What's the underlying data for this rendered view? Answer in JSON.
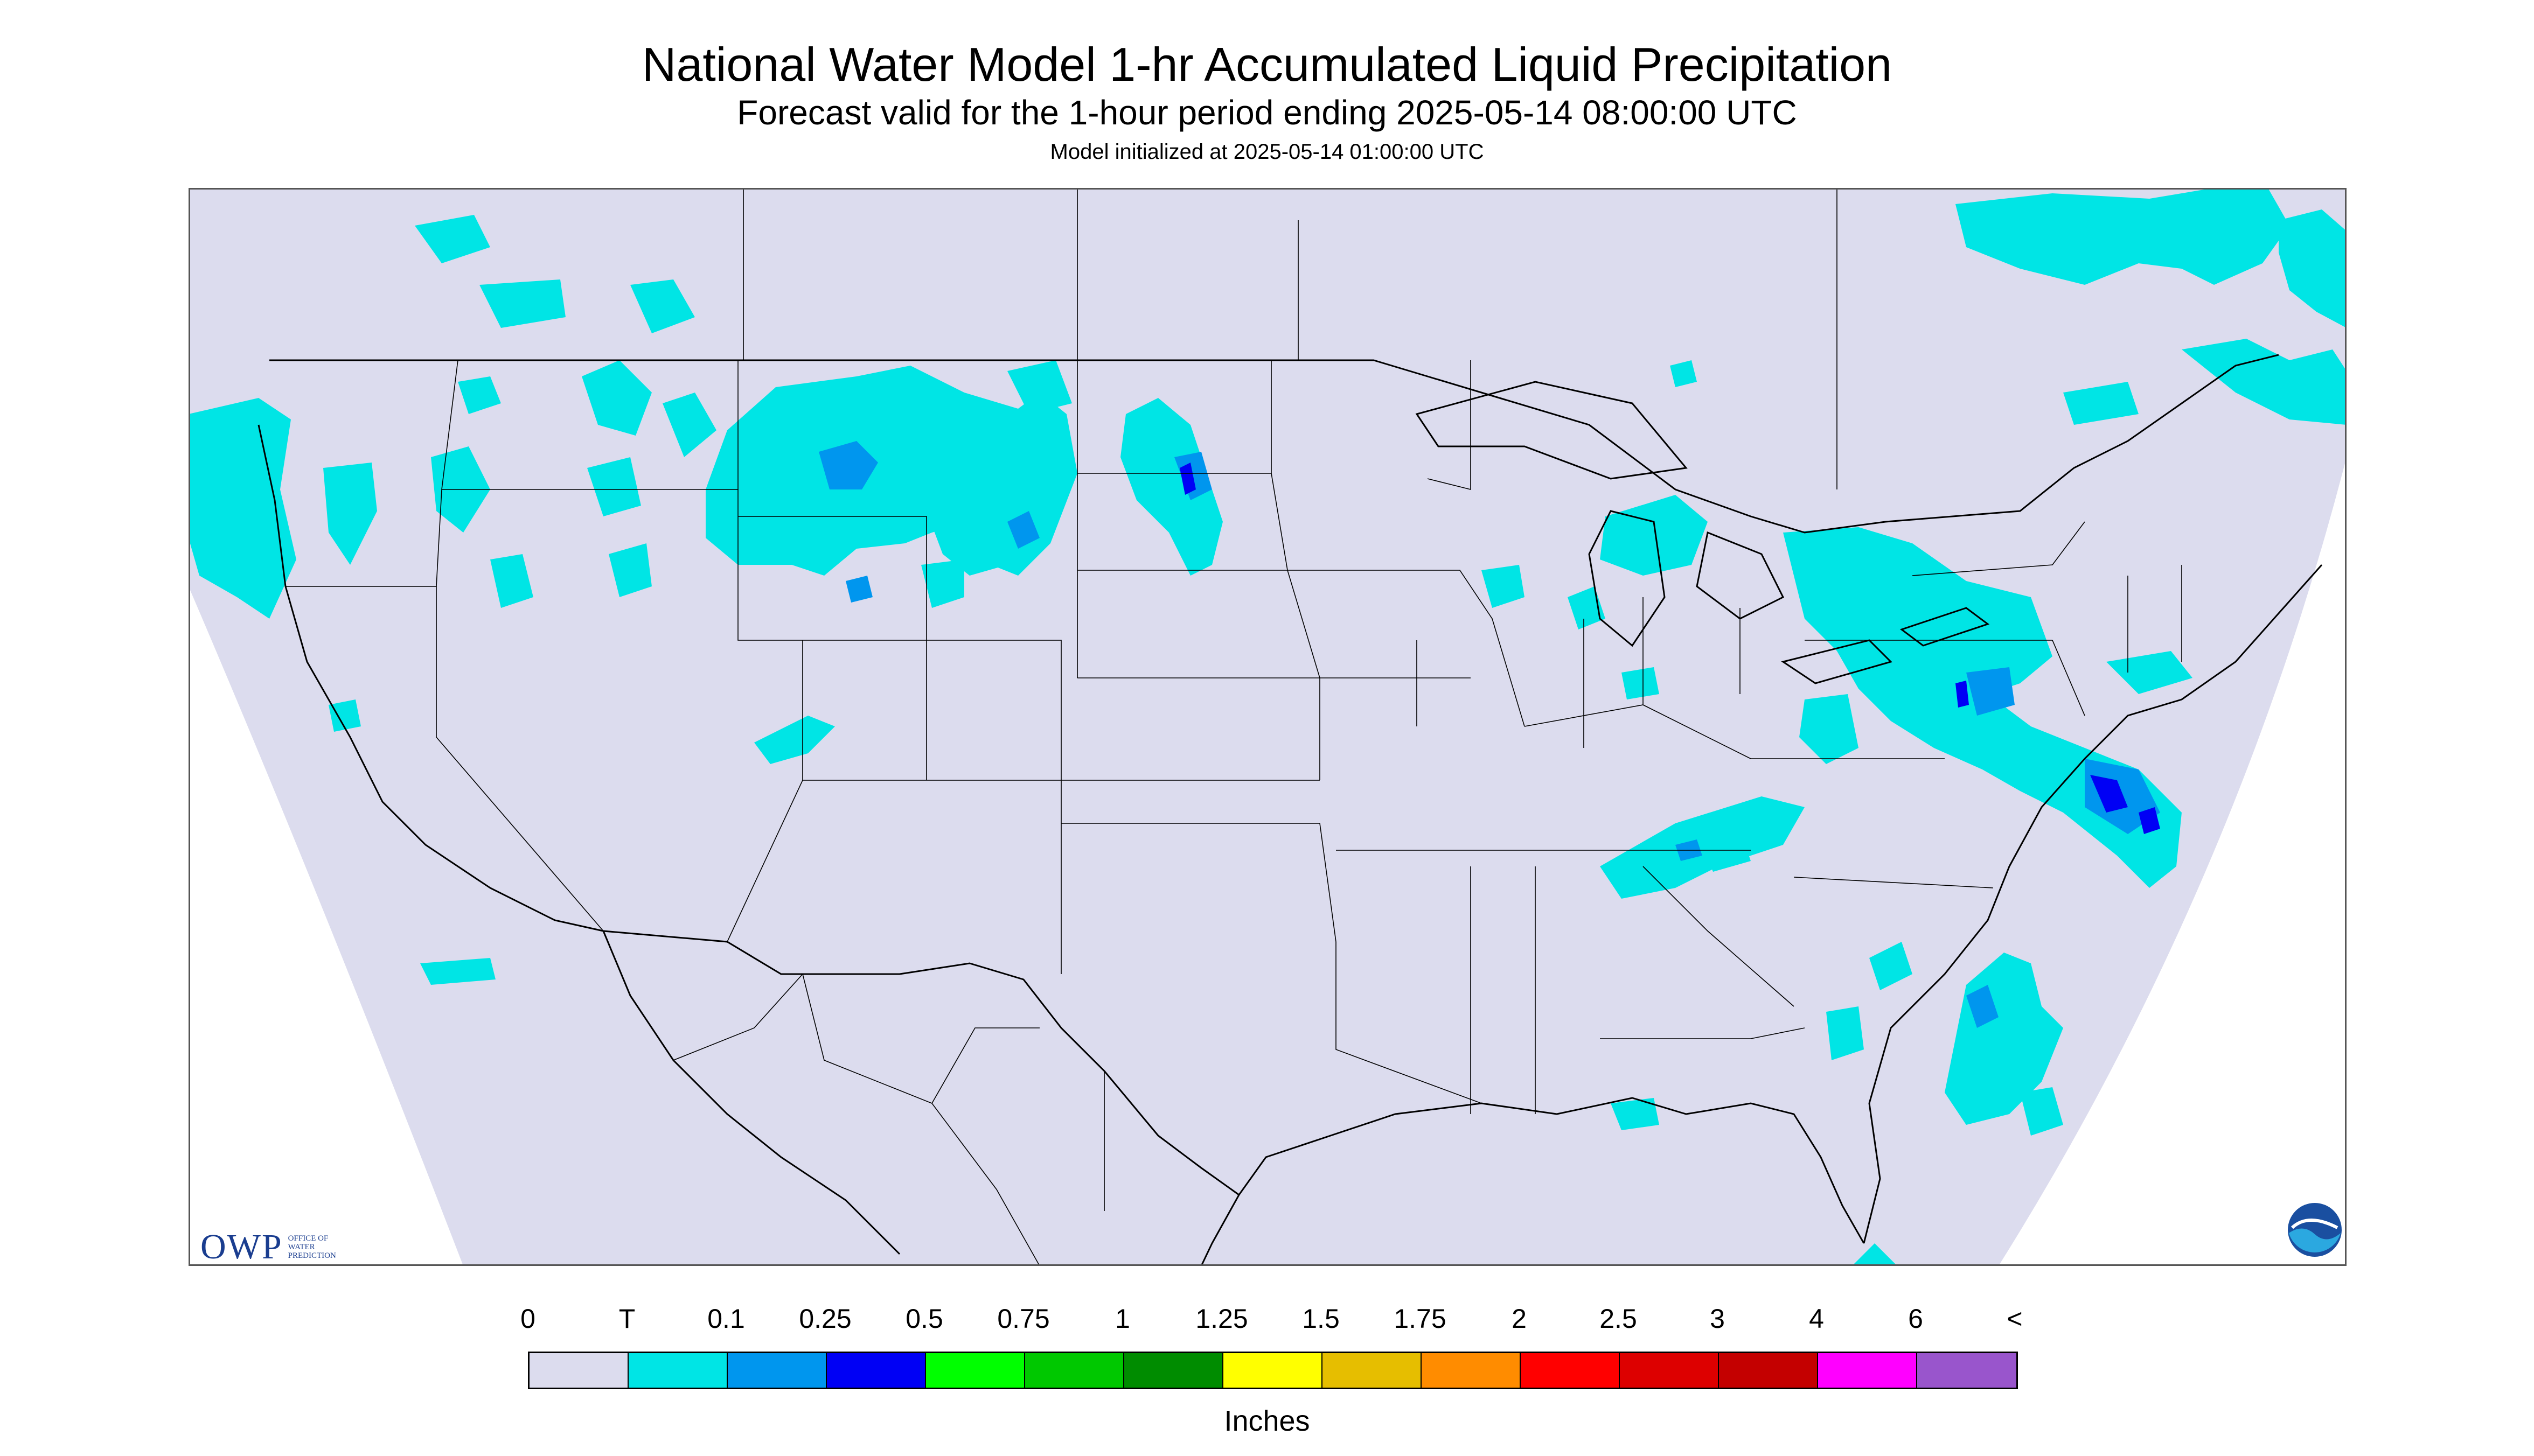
{
  "header": {
    "title": "National Water Model 1-hr Accumulated Liquid Precipitation",
    "subtitle": "Forecast valid for the 1-hour period ending 2025-05-14 08:00:00 UTC",
    "init": "Model initialized at 2025-05-14 01:00:00 UTC"
  },
  "legend": {
    "labels": [
      "0",
      "T",
      "0.1",
      "0.25",
      "0.5",
      "0.75",
      "1",
      "1.25",
      "1.5",
      "1.75",
      "2",
      "2.5",
      "3",
      "4",
      "6",
      "<"
    ],
    "colors": [
      "#dcdcee",
      "#00e5e5",
      "#0096ee",
      "#0000f5",
      "#00ff00",
      "#00c800",
      "#008c00",
      "#ffff00",
      "#e6be00",
      "#ff8c00",
      "#ff0000",
      "#dd0000",
      "#c40000",
      "#ff00ff",
      "#9955cc"
    ],
    "units": "Inches"
  },
  "logos": {
    "owp_mark": "OWP",
    "owp_text": "OFFICE OF WATER PREDICTION",
    "noaa_text": "NOAA"
  },
  "map": {
    "background_color": "#dcdcee",
    "outside_color": "#ffffff",
    "boundary_color": "#000000",
    "precip_light": "#00e5e5",
    "precip_medium": "#0096ee",
    "precip_heavy": "#0000f5"
  }
}
